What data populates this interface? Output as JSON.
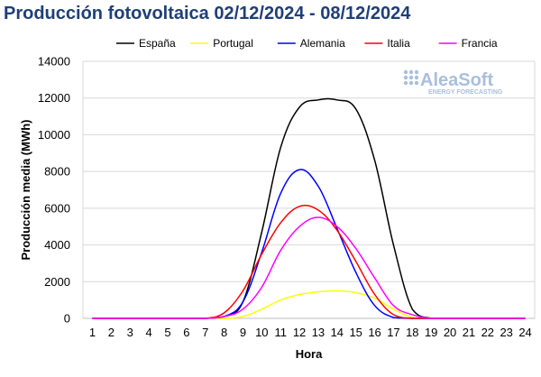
{
  "title": "Producción fotovoltaica 02/12/2024 - 08/12/2024",
  "logo": {
    "name": "AleaSoft",
    "tagline": "ENERGY FORECASTING",
    "color": "#a9bfdc"
  },
  "chart_data": {
    "type": "line",
    "title": "Producción fotovoltaica 02/12/2024 - 08/12/2024",
    "xlabel": "Hora",
    "ylabel": "Producción media (MWh)",
    "x": [
      1,
      2,
      3,
      4,
      5,
      6,
      7,
      8,
      9,
      10,
      11,
      12,
      13,
      14,
      15,
      16,
      17,
      18,
      19,
      20,
      21,
      22,
      23,
      24
    ],
    "ylim": [
      0,
      14000
    ],
    "yticks": [
      0,
      2000,
      4000,
      6000,
      8000,
      10000,
      12000,
      14000
    ],
    "grid": true,
    "legend_position": "top",
    "series": [
      {
        "name": "España",
        "color": "#000000",
        "values": [
          0,
          0,
          0,
          0,
          0,
          0,
          0,
          100,
          900,
          4700,
          9300,
          11500,
          11900,
          11900,
          11400,
          8600,
          4000,
          500,
          0,
          0,
          0,
          0,
          0,
          0
        ]
      },
      {
        "name": "Portugal",
        "color": "#ffff00",
        "values": [
          0,
          0,
          0,
          0,
          0,
          0,
          0,
          0,
          100,
          500,
          1000,
          1300,
          1450,
          1500,
          1400,
          1100,
          500,
          50,
          0,
          0,
          0,
          0,
          0,
          0
        ]
      },
      {
        "name": "Alemania",
        "color": "#0000ff",
        "values": [
          0,
          0,
          0,
          0,
          0,
          0,
          0,
          100,
          900,
          3600,
          6800,
          8100,
          7200,
          4900,
          2500,
          700,
          50,
          0,
          0,
          0,
          0,
          0,
          0,
          0
        ]
      },
      {
        "name": "Italia",
        "color": "#ff0000",
        "values": [
          0,
          0,
          0,
          0,
          0,
          0,
          0,
          300,
          1500,
          3500,
          5200,
          6100,
          5900,
          4800,
          3100,
          1300,
          200,
          0,
          0,
          0,
          0,
          0,
          0,
          0
        ]
      },
      {
        "name": "Francia",
        "color": "#ff00ff",
        "values": [
          0,
          0,
          0,
          0,
          0,
          0,
          0,
          100,
          500,
          1700,
          3700,
          5000,
          5500,
          5000,
          3800,
          2200,
          700,
          200,
          0,
          0,
          0,
          0,
          0,
          0
        ]
      }
    ]
  }
}
